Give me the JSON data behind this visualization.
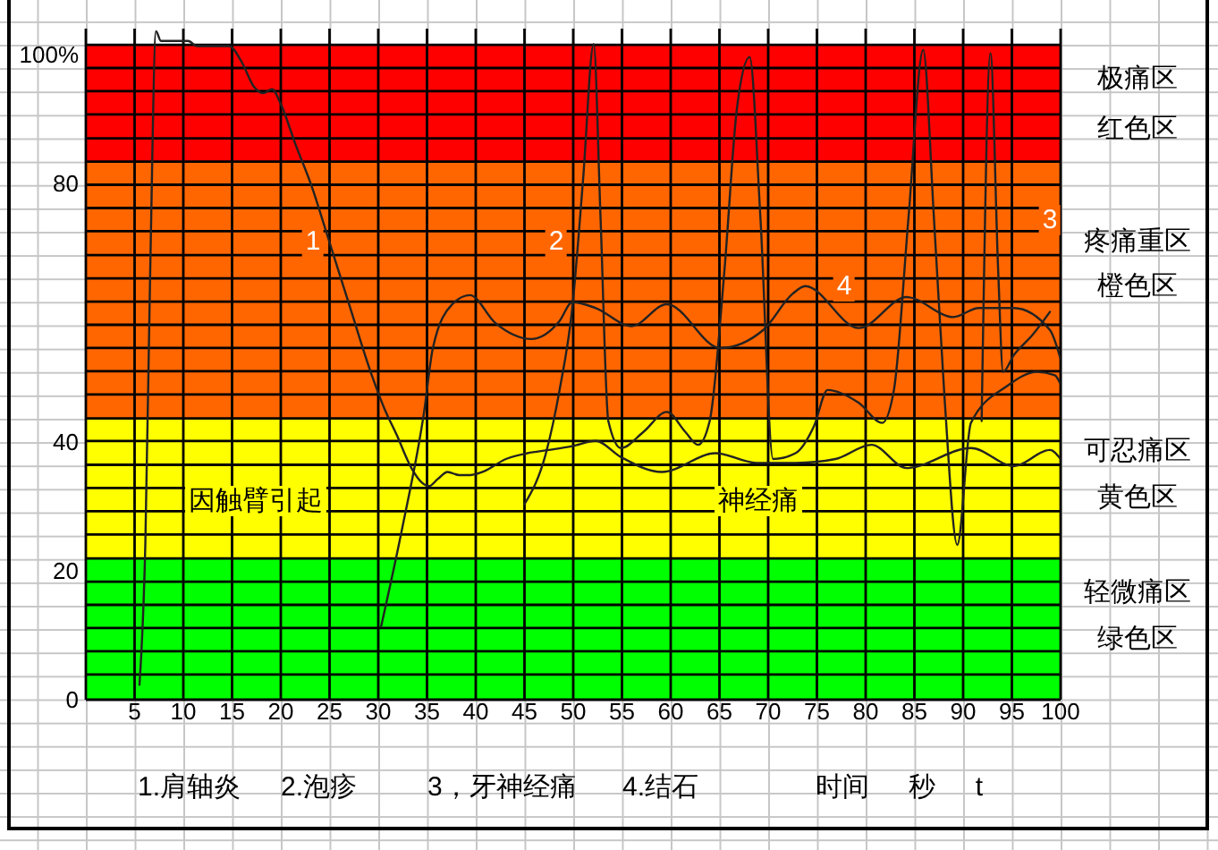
{
  "chart_data": {
    "type": "line",
    "xlabel": "时间 秒 t",
    "annotations": [
      "1",
      "2",
      "3",
      "4",
      "因触臂引起",
      "神经痛",
      "红色区",
      "橙色区",
      "黄色区",
      "绿色区",
      "1.肩轴炎",
      "2.泡疹",
      "3，牙神经痛",
      "4.结石"
    ],
    "xlim": [
      0,
      100
    ],
    "xticks": [
      5,
      10,
      15,
      20,
      25,
      30,
      35,
      40,
      45,
      50,
      55,
      60,
      65,
      70,
      75,
      80,
      85,
      90,
      95,
      100
    ],
    "ylim": [
      0,
      104
    ],
    "yticks": [
      0,
      {
        "value": 3.9,
        "label": null
      },
      {
        "value": 7.5,
        "label": null
      },
      {
        "value": 11.1,
        "label": null
      },
      {
        "value": 14.7,
        "label": null
      },
      {
        "value": 18.3,
        "label": null
      },
      20,
      {
        "value": 21.9,
        "label": null
      },
      {
        "value": 25.6,
        "label": null
      },
      {
        "value": 29.2,
        "label": null
      },
      {
        "value": 32.8,
        "label": null
      },
      {
        "value": 36.4,
        "label": null
      },
      40,
      {
        "value": 40.1,
        "label": null
      },
      {
        "value": 43.6,
        "label": null
      },
      {
        "value": 47.3,
        "label": null
      },
      {
        "value": 50.9,
        "label": null
      },
      {
        "value": 54.5,
        "label": null
      },
      {
        "value": 58.1,
        "label": null
      },
      {
        "value": 61.7,
        "label": null
      },
      {
        "value": 65.3,
        "label": null
      },
      {
        "value": 68.9,
        "label": null
      },
      {
        "value": 72.6,
        "label": null
      },
      {
        "value": 76.2,
        "label": null
      },
      {
        "value": 79.8,
        "label": null
      },
      80,
      {
        "value": 83.4,
        "label": null
      },
      {
        "value": 87.0,
        "label": null
      },
      {
        "value": 90.7,
        "label": null
      },
      {
        "value": 94.3,
        "label": null
      },
      {
        "value": 97.9,
        "label": null
      },
      {
        "value": 100,
        "label": "100%"
      },
      {
        "value": 101.5,
        "label": null
      }
    ],
    "grid": true,
    "bands": [
      {
        "axis": "y",
        "from": 0,
        "to": 21.9,
        "label": "轻微痛区",
        "color": "#00ff00"
      },
      {
        "axis": "y",
        "from": 21.9,
        "to": 43.6,
        "label": "可忍痛区",
        "color": "#ffff00"
      },
      {
        "axis": "y",
        "from": 43.6,
        "to": 83.4,
        "label": "疼痛重区",
        "color": "#ff6600"
      },
      {
        "axis": "y",
        "from": 83.4,
        "to": 101.5,
        "label": "极痛区",
        "color": "#ff0000"
      }
    ],
    "series": [
      {
        "color": "#222222",
        "x": [
          5.5,
          6.1,
          6.6,
          7.2,
          7.7,
          10.5,
          11.4,
          14.7,
          16.0,
          17.2,
          18.2,
          19.1,
          20.0,
          21.5,
          23.3,
          24.6,
          27.0,
          29.4,
          30.6,
          31.9,
          33.4,
          34.5,
          35.2,
          36.1,
          37.1,
          38.3,
          39.4,
          40.7,
          43.1,
          45.3,
          47.5,
          49.9,
          52.3,
          54.9,
          59.1,
          64.6,
          68.8,
          72.8,
          76.9,
          80.6,
          84.2,
          90.8,
          95.2,
          98.9,
          100.0
        ],
        "values": [
          2.3,
          24.0,
          66.3,
          103.6,
          102.1,
          102.1,
          101.3,
          101.3,
          98.8,
          95.1,
          94.0,
          94.6,
          92.3,
          86.1,
          79.0,
          72.8,
          61.3,
          50.0,
          45.2,
          41.0,
          35.9,
          33.6,
          33.1,
          34.2,
          35.3,
          34.8,
          34.8,
          35.3,
          37.3,
          38.2,
          38.7,
          39.3,
          40.1,
          37.6,
          35.3,
          38.2,
          36.7,
          36.7,
          37.3,
          39.5,
          35.9,
          39.0,
          36.2,
          38.7,
          37.3
        ]
      },
      {
        "color": "#222222",
        "x": [
          45.0,
          47.2,
          48.6,
          49.9,
          51.0,
          52.1,
          52.8,
          53.6,
          54.9,
          57.2,
          59.6,
          61.5,
          62.8,
          64.0,
          65.5,
          66.8,
          68.1,
          69.2,
          70.5,
          72.8,
          74.7,
          76.1,
          79.3,
          81.7,
          82.9,
          84.4,
          85.9,
          87.0,
          88.1,
          89.4,
          90.8,
          94.5,
          97.6,
          99.4,
          100.0
        ],
        "values": [
          30.3,
          38.2,
          48.0,
          60.7,
          80.4,
          101.6,
          74.8,
          43.2,
          39.0,
          41.5,
          44.6,
          41.5,
          39.5,
          43.2,
          66.3,
          91.7,
          99.6,
          74.8,
          37.3,
          38.2,
          42.4,
          48.0,
          46.0,
          42.9,
          48.0,
          74.8,
          100.7,
          74.8,
          46.6,
          24.0,
          42.9,
          48.6,
          50.8,
          50.3,
          48.9
        ]
      },
      {
        "color": "#222222",
        "x": [
          91.9,
          92.8,
          93.6,
          94.1,
          95.2,
          97.1,
          98.9
        ],
        "values": [
          43.2,
          100.2,
          66.3,
          50.8,
          53.4,
          56.5,
          60.1
        ]
      },
      {
        "color": "#222222",
        "x": [
          30.3,
          32.5,
          34.7,
          35.6,
          37.6,
          39.4,
          42.0,
          45.7,
          48.6,
          49.9,
          52.3,
          56.0,
          59.6,
          65.1,
          69.5,
          72.5,
          73.8,
          79.3,
          84.2,
          89.0,
          91.6,
          95.2,
          98.9,
          100.0
        ],
        "values": [
          11.4,
          26.9,
          44.6,
          54.5,
          61.3,
          62.7,
          58.4,
          55.9,
          58.7,
          61.6,
          60.7,
          57.9,
          61.3,
          54.5,
          57.3,
          62.9,
          64.1,
          57.6,
          62.4,
          59.3,
          60.7,
          60.7,
          57.3,
          52.8
        ]
      }
    ]
  }
}
